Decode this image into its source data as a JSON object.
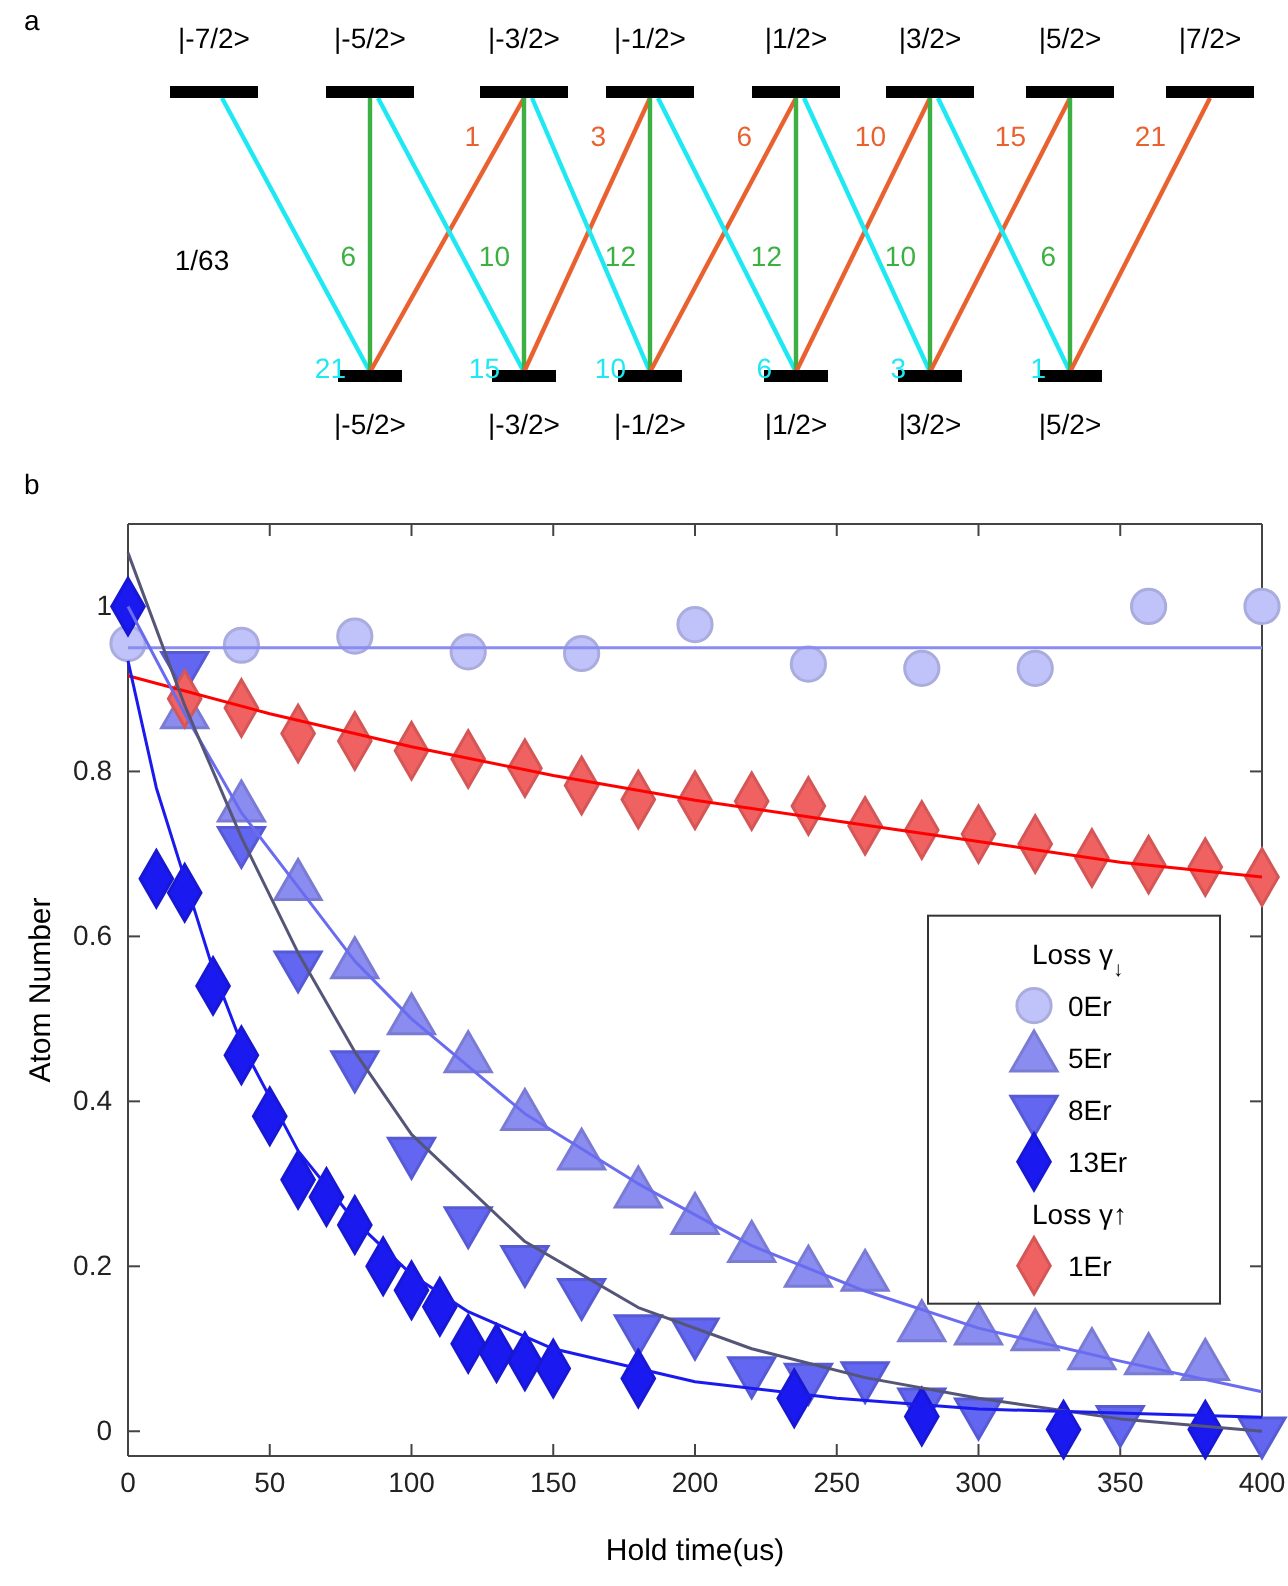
{
  "chart_data": [
    {
      "type": "other",
      "title": "a",
      "annotations": [
        "|-7/2>",
        "|-5/2>",
        "|-3/2>",
        "|-1/2>",
        "|1/2>",
        "|3/2>",
        "|5/2>",
        "|7/2>",
        "|-5/2>",
        "|-3/2>",
        "|-1/2>",
        "|1/2>",
        "|3/2>",
        "|5/2>",
        "1/63",
        "21",
        "15",
        "10",
        "6",
        "3",
        "1",
        "6",
        "10",
        "12",
        "12",
        "10",
        "6",
        "1",
        "3",
        "6",
        "10",
        "15",
        "21"
      ]
    },
    {
      "type": "scatter",
      "title": "b",
      "xlabel": "Hold time(us)",
      "ylabel": "Atom Number",
      "legend_title": "Loss γ$_{↓}$",
      "annotations": [
        "Loss γ↑"
      ],
      "legend": "right",
      "grid": false,
      "xlim": [
        0,
        400
      ],
      "ylim": [
        -0.03,
        1.1
      ],
      "xticks": [
        0,
        50,
        100,
        150,
        200,
        250,
        300,
        350,
        400
      ],
      "yticks": [
        0,
        0.2,
        0.4,
        0.6,
        0.8,
        1
      ],
      "series": [
        {
          "type": "line",
          "marker": "none",
          "color": "#8a8cf0",
          "x": [
            0,
            400
          ],
          "values": [
            0.95,
            0.95
          ]
        },
        {
          "type": "line",
          "marker": "none",
          "color": "#ff0000",
          "x": [
            0,
            50,
            100,
            150,
            200,
            250,
            300,
            350,
            400
          ],
          "values": [
            0.916,
            0.87,
            0.83,
            0.795,
            0.765,
            0.74,
            0.715,
            0.69,
            0.672
          ]
        },
        {
          "type": "line",
          "marker": "none",
          "color": "#6a6cf0",
          "x": [
            0,
            20,
            40,
            60,
            80,
            100,
            140,
            180,
            220,
            260,
            300,
            350,
            400
          ],
          "values": [
            1.0,
            0.87,
            0.75,
            0.66,
            0.57,
            0.5,
            0.385,
            0.3,
            0.225,
            0.17,
            0.125,
            0.085,
            0.048
          ]
        },
        {
          "type": "line",
          "marker": "none",
          "color": "#555577",
          "x": [
            0,
            20,
            40,
            60,
            80,
            100,
            140,
            180,
            220,
            260,
            300,
            350,
            400
          ],
          "values": [
            1.065,
            0.88,
            0.72,
            0.58,
            0.46,
            0.36,
            0.23,
            0.15,
            0.1,
            0.065,
            0.04,
            0.015,
            0.0
          ]
        },
        {
          "type": "line",
          "marker": "none",
          "color": "#1a1aee",
          "x": [
            0,
            10,
            20,
            30,
            40,
            60,
            80,
            100,
            120,
            150,
            200,
            250,
            300,
            400
          ],
          "values": [
            0.934,
            0.78,
            0.67,
            0.56,
            0.47,
            0.34,
            0.255,
            0.19,
            0.145,
            0.1,
            0.06,
            0.04,
            0.027,
            0.017
          ]
        },
        {
          "name": "0Er",
          "type": "scatter",
          "marker": "circle",
          "color": "#c0c3fa",
          "x": [
            0,
            40,
            80,
            120,
            160,
            200,
            240,
            280,
            320,
            360,
            400
          ],
          "values": [
            0.955,
            0.953,
            0.964,
            0.945,
            0.943,
            0.978,
            0.93,
            0.925,
            0.925,
            1.0,
            1.0
          ]
        },
        {
          "name": "5Er",
          "type": "scatter",
          "marker": "triangle",
          "color": "#8a8cf0",
          "x": [
            20,
            40,
            60,
            80,
            100,
            120,
            140,
            160,
            180,
            200,
            220,
            240,
            260,
            280,
            300,
            320,
            340,
            360,
            380
          ],
          "values": [
            0.869,
            0.756,
            0.661,
            0.566,
            0.498,
            0.452,
            0.382,
            0.334,
            0.288,
            0.256,
            0.222,
            0.192,
            0.187,
            0.126,
            0.122,
            0.115,
            0.092,
            0.086,
            0.079
          ]
        },
        {
          "name": "8Er",
          "type": "scatter",
          "marker": "triangle-down",
          "color": "#6266f0",
          "x": [
            20,
            40,
            60,
            80,
            100,
            120,
            140,
            160,
            180,
            200,
            220,
            240,
            260,
            280,
            300,
            350,
            400
          ],
          "values": [
            0.928,
            0.716,
            0.565,
            0.444,
            0.339,
            0.255,
            0.208,
            0.168,
            0.124,
            0.12,
            0.073,
            0.065,
            0.067,
            0.035,
            0.023,
            0.014,
            0.0
          ]
        },
        {
          "name": "13Er",
          "type": "scatter",
          "marker": "diamond",
          "color": "#1a1af0",
          "x": [
            0,
            10,
            20,
            30,
            40,
            50,
            60,
            70,
            80,
            90,
            100,
            110,
            120,
            130,
            140,
            150,
            180,
            235,
            280,
            330,
            380
          ],
          "values": [
            1.0,
            0.67,
            0.653,
            0.54,
            0.456,
            0.382,
            0.305,
            0.284,
            0.25,
            0.2,
            0.171,
            0.151,
            0.106,
            0.095,
            0.085,
            0.076,
            0.064,
            0.04,
            0.018,
            0.002,
            0.002
          ]
        },
        {
          "name": "1Er",
          "type": "scatter",
          "marker": "diamond",
          "color": "#f06262",
          "x": [
            20,
            40,
            60,
            80,
            100,
            120,
            140,
            160,
            180,
            200,
            220,
            240,
            260,
            280,
            300,
            320,
            340,
            360,
            380,
            400
          ],
          "values": [
            0.888,
            0.877,
            0.846,
            0.837,
            0.825,
            0.815,
            0.804,
            0.783,
            0.766,
            0.765,
            0.764,
            0.758,
            0.734,
            0.729,
            0.724,
            0.712,
            0.695,
            0.687,
            0.684,
            0.672
          ]
        }
      ]
    }
  ]
}
